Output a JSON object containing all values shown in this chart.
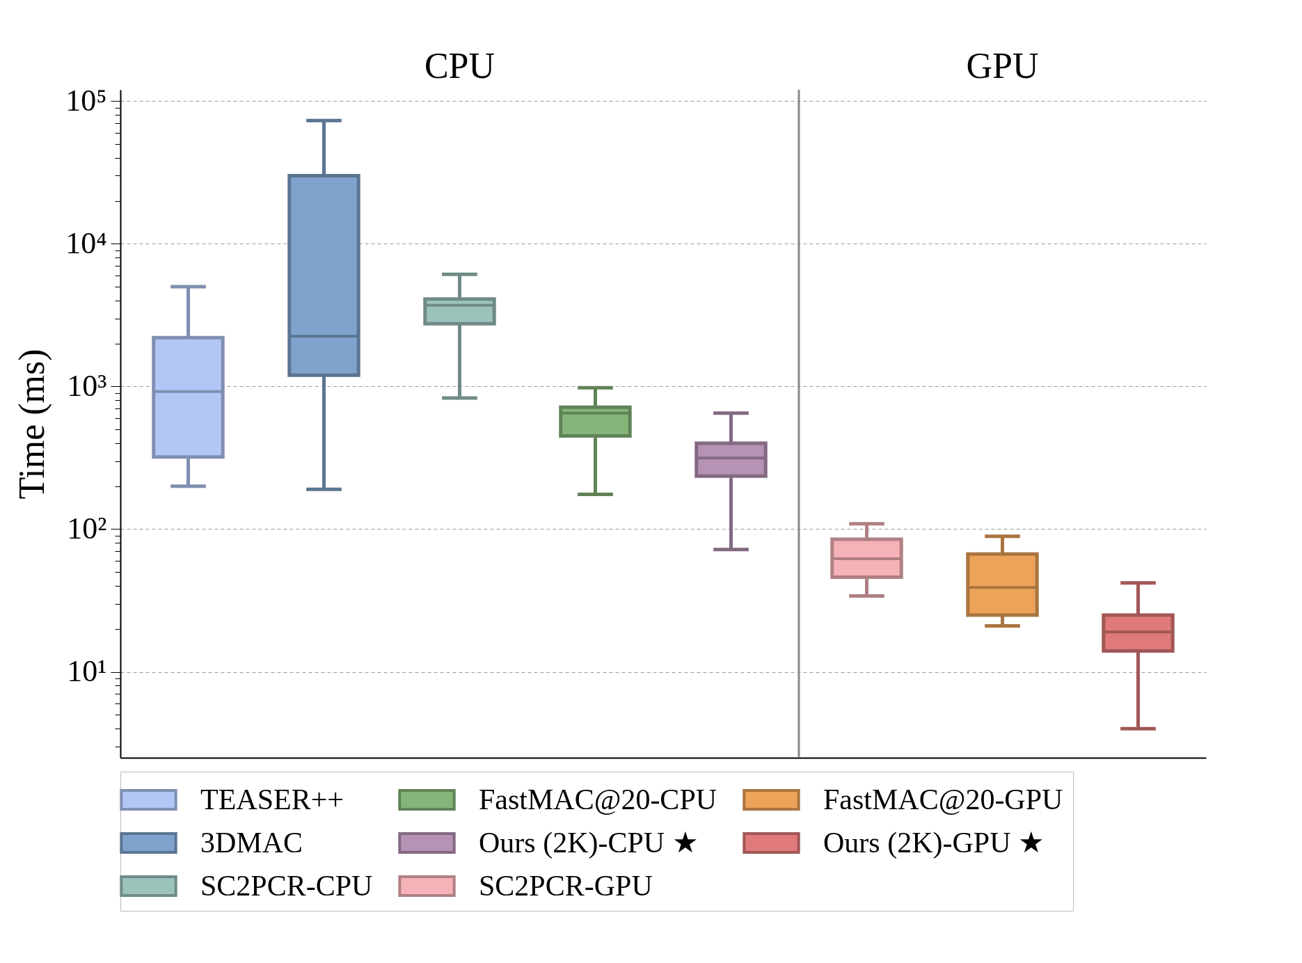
{
  "chart_data": {
    "type": "box",
    "ylabel": "Time (ms)",
    "log": true,
    "grid": "y",
    "legend": "bottom",
    "categories": [
      null,
      null,
      null,
      null,
      null,
      null,
      null,
      null
    ],
    "ylim": [
      2.5,
      120000
    ],
    "yticks": [
      {
        "value": 3,
        "label": null
      },
      {
        "value": 4,
        "label": null
      },
      {
        "value": 5,
        "label": null
      },
      {
        "value": 6,
        "label": null
      },
      {
        "value": 7,
        "label": null
      },
      {
        "value": 8,
        "label": null
      },
      {
        "value": 9,
        "label": null
      },
      {
        "value": 10,
        "label": "10¹"
      },
      {
        "value": 20,
        "label": null
      },
      {
        "value": 30,
        "label": null
      },
      {
        "value": 40,
        "label": null
      },
      {
        "value": 50,
        "label": null
      },
      {
        "value": 60,
        "label": null
      },
      {
        "value": 70,
        "label": null
      },
      {
        "value": 80,
        "label": null
      },
      {
        "value": 90,
        "label": null
      },
      {
        "value": 100,
        "label": "10²"
      },
      {
        "value": 200,
        "label": null
      },
      {
        "value": 300,
        "label": null
      },
      {
        "value": 400,
        "label": null
      },
      {
        "value": 500,
        "label": null
      },
      {
        "value": 600,
        "label": null
      },
      {
        "value": 700,
        "label": null
      },
      {
        "value": 800,
        "label": null
      },
      {
        "value": 900,
        "label": null
      },
      {
        "value": 1000,
        "label": "10³"
      },
      {
        "value": 2000,
        "label": null
      },
      {
        "value": 3000,
        "label": null
      },
      {
        "value": 4000,
        "label": null
      },
      {
        "value": 5000,
        "label": null
      },
      {
        "value": 6000,
        "label": null
      },
      {
        "value": 7000,
        "label": null
      },
      {
        "value": 8000,
        "label": null
      },
      {
        "value": 9000,
        "label": null
      },
      {
        "value": 10000,
        "label": "10⁴"
      },
      {
        "value": 20000,
        "label": null
      },
      {
        "value": 30000,
        "label": null
      },
      {
        "value": 40000,
        "label": null
      },
      {
        "value": 50000,
        "label": null
      },
      {
        "value": 60000,
        "label": null
      },
      {
        "value": 70000,
        "label": null
      },
      {
        "value": 80000,
        "label": null
      },
      {
        "value": 90000,
        "label": null
      },
      {
        "value": 100000,
        "label": "10⁵"
      }
    ],
    "annotations": [
      "CPU",
      "GPU"
    ],
    "series": [
      {
        "name": "TEASER++",
        "color": "#b3c7f7",
        "boxes": [
          {
            "low": 200,
            "q1": 320,
            "median": 920,
            "q3": 2200,
            "high": 5000
          },
          null,
          null,
          null,
          null,
          null,
          null,
          null
        ]
      },
      {
        "name": "3DMAC",
        "color": "#7fa3cc",
        "boxes": [
          null,
          {
            "low": 190,
            "q1": 1200,
            "median": 2250,
            "q3": 30000,
            "high": 73000
          },
          null,
          null,
          null,
          null,
          null,
          null
        ]
      },
      {
        "name": "SC2PCR-CPU",
        "color": "#9cc2bc",
        "boxes": [
          null,
          null,
          {
            "low": 830,
            "q1": 2750,
            "median": 3700,
            "q3": 4100,
            "high": 6100
          },
          null,
          null,
          null,
          null,
          null
        ]
      },
      {
        "name": "FastMAC@20-CPU",
        "color": "#86b57a",
        "boxes": [
          null,
          null,
          null,
          {
            "low": 175,
            "q1": 450,
            "median": 650,
            "q3": 715,
            "high": 980
          },
          null,
          null,
          null,
          null
        ]
      },
      {
        "name": "Ours (2K)-CPU ★",
        "color": "#b692b5",
        "boxes": [
          null,
          null,
          null,
          null,
          {
            "low": 72,
            "q1": 235,
            "median": 315,
            "q3": 400,
            "high": 650
          },
          null,
          null,
          null
        ]
      },
      {
        "name": "SC2PCR-GPU",
        "color": "#f5b3b8",
        "boxes": [
          null,
          null,
          null,
          null,
          null,
          {
            "low": 34,
            "q1": 46,
            "median": 62,
            "q3": 85,
            "high": 109
          },
          null,
          null
        ]
      },
      {
        "name": "FastMAC@20-GPU",
        "color": "#eda35a",
        "boxes": [
          null,
          null,
          null,
          null,
          null,
          null,
          {
            "low": 21,
            "q1": 25,
            "median": 39,
            "q3": 67,
            "high": 89
          },
          null
        ]
      },
      {
        "name": "Ours (2K)-GPU ★",
        "color": "#e07a7a",
        "boxes": [
          null,
          null,
          null,
          null,
          null,
          null,
          null,
          {
            "low": 4,
            "q1": 14,
            "median": 19,
            "q3": 25,
            "high": 42
          }
        ]
      }
    ]
  }
}
